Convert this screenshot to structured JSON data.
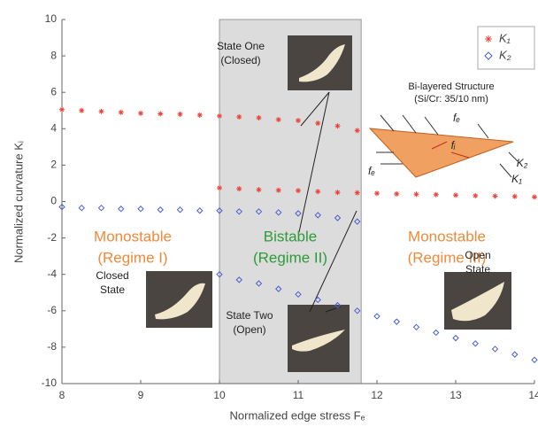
{
  "chart_data": {
    "type": "scatter",
    "x_label": "Normalized edge stress Fₑ",
    "y_label": "Normalized curvature Kᵢ",
    "xlim": [
      8,
      14
    ],
    "ylim": [
      -10,
      10
    ],
    "xticks": [
      8,
      9,
      10,
      11,
      12,
      13,
      14
    ],
    "yticks": [
      -10,
      -8,
      -6,
      -4,
      -2,
      0,
      2,
      4,
      6,
      8,
      10
    ],
    "grid": false,
    "legend": "top-right",
    "bistable_range": [
      10,
      11.8
    ],
    "series": [
      {
        "name": "K₁",
        "color": "#e8463c",
        "marker": "asterisk",
        "x": [
          8,
          8.25,
          8.5,
          8.75,
          9,
          9.25,
          9.5,
          9.75,
          10,
          10.25,
          10.5,
          10.75,
          11,
          11.25,
          11.5,
          11.75,
          10,
          10.25,
          10.5,
          10.75,
          11,
          11.25,
          11.5,
          11.75,
          12,
          12.25,
          12.5,
          12.75,
          13,
          13.25,
          13.5,
          13.75,
          14
        ],
        "values": [
          5.05,
          5.0,
          4.95,
          4.9,
          4.85,
          4.82,
          4.8,
          4.75,
          4.7,
          4.65,
          4.6,
          4.5,
          4.45,
          4.3,
          4.15,
          3.9,
          0.75,
          0.7,
          0.65,
          0.62,
          0.6,
          0.55,
          0.5,
          0.48,
          0.45,
          0.42,
          0.4,
          0.38,
          0.35,
          0.32,
          0.3,
          0.28,
          0.25
        ]
      },
      {
        "name": "K₂",
        "color": "#4a5fd0",
        "marker": "diamond",
        "x": [
          8,
          8.25,
          8.5,
          8.75,
          9,
          9.25,
          9.5,
          9.75,
          10,
          10.25,
          10.5,
          10.75,
          11,
          11.25,
          11.5,
          11.75,
          10,
          10.25,
          10.5,
          10.75,
          11,
          11.25,
          11.5,
          11.75,
          12,
          12.25,
          12.5,
          12.75,
          13,
          13.25,
          13.5,
          13.75,
          14
        ],
        "values": [
          -0.3,
          -0.35,
          -0.35,
          -0.4,
          -0.4,
          -0.45,
          -0.45,
          -0.5,
          -0.5,
          -0.55,
          -0.55,
          -0.6,
          -0.65,
          -0.75,
          -0.9,
          -1.1,
          -4.0,
          -4.3,
          -4.5,
          -4.8,
          -5.1,
          -5.4,
          -5.7,
          -6.0,
          -6.3,
          -6.6,
          -6.9,
          -7.2,
          -7.5,
          -7.8,
          -8.1,
          -8.4,
          -8.7
        ]
      }
    ],
    "annotations": [
      {
        "lines": [
          "Monostable",
          "(Regime I)"
        ]
      },
      {
        "lines": [
          "Bistable",
          "(Regime II)"
        ]
      },
      {
        "lines": [
          "Monostable",
          "(Regime III)"
        ]
      },
      {
        "lines": [
          "State One",
          "(Closed)"
        ]
      },
      {
        "lines": [
          "State Two",
          "(Open)"
        ]
      },
      {
        "lines": [
          "Closed",
          "State"
        ]
      },
      {
        "lines": [
          "Open",
          "State"
        ]
      },
      {
        "lines": [
          "Bi-layered Structure",
          "(Si/Cr: 35/10 nm)"
        ]
      }
    ],
    "diagram_labels": [
      "fₑ",
      "fᵢ",
      "fₑ",
      "K₂",
      "K₁"
    ]
  }
}
